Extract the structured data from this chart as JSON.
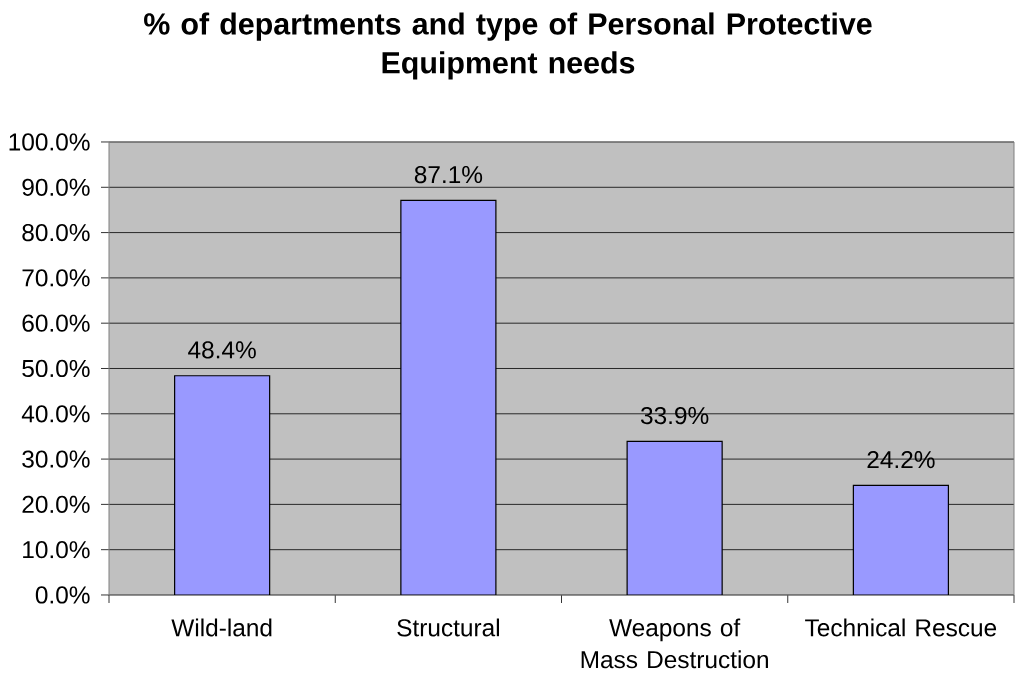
{
  "chart_data": {
    "type": "bar",
    "title": "% of departments and type of Personal Protective Equipment needs",
    "categories": [
      "Wild-land",
      "Structural",
      "Weapons of Mass Destruction",
      "Technical Rescue"
    ],
    "values": [
      48.4,
      87.1,
      33.9,
      24.2
    ],
    "color": "#9999ff",
    "value_labels": [
      "48.4%",
      "87.1%",
      "33.9%",
      "24.2%"
    ],
    "ylim": [
      0,
      100
    ],
    "yticks": [
      {
        "value": 0,
        "label": "0.0%"
      },
      {
        "value": 10,
        "label": "10.0%"
      },
      {
        "value": 20,
        "label": "20.0%"
      },
      {
        "value": 30,
        "label": "30.0%"
      },
      {
        "value": 40,
        "label": "40.0%"
      },
      {
        "value": 50,
        "label": "50.0%"
      },
      {
        "value": 60,
        "label": "60.0%"
      },
      {
        "value": 70,
        "label": "70.0%"
      },
      {
        "value": 80,
        "label": "80.0%"
      },
      {
        "value": 90,
        "label": "90.0%"
      },
      {
        "value": 100,
        "label": "100.0%"
      }
    ],
    "grid": "y"
  }
}
